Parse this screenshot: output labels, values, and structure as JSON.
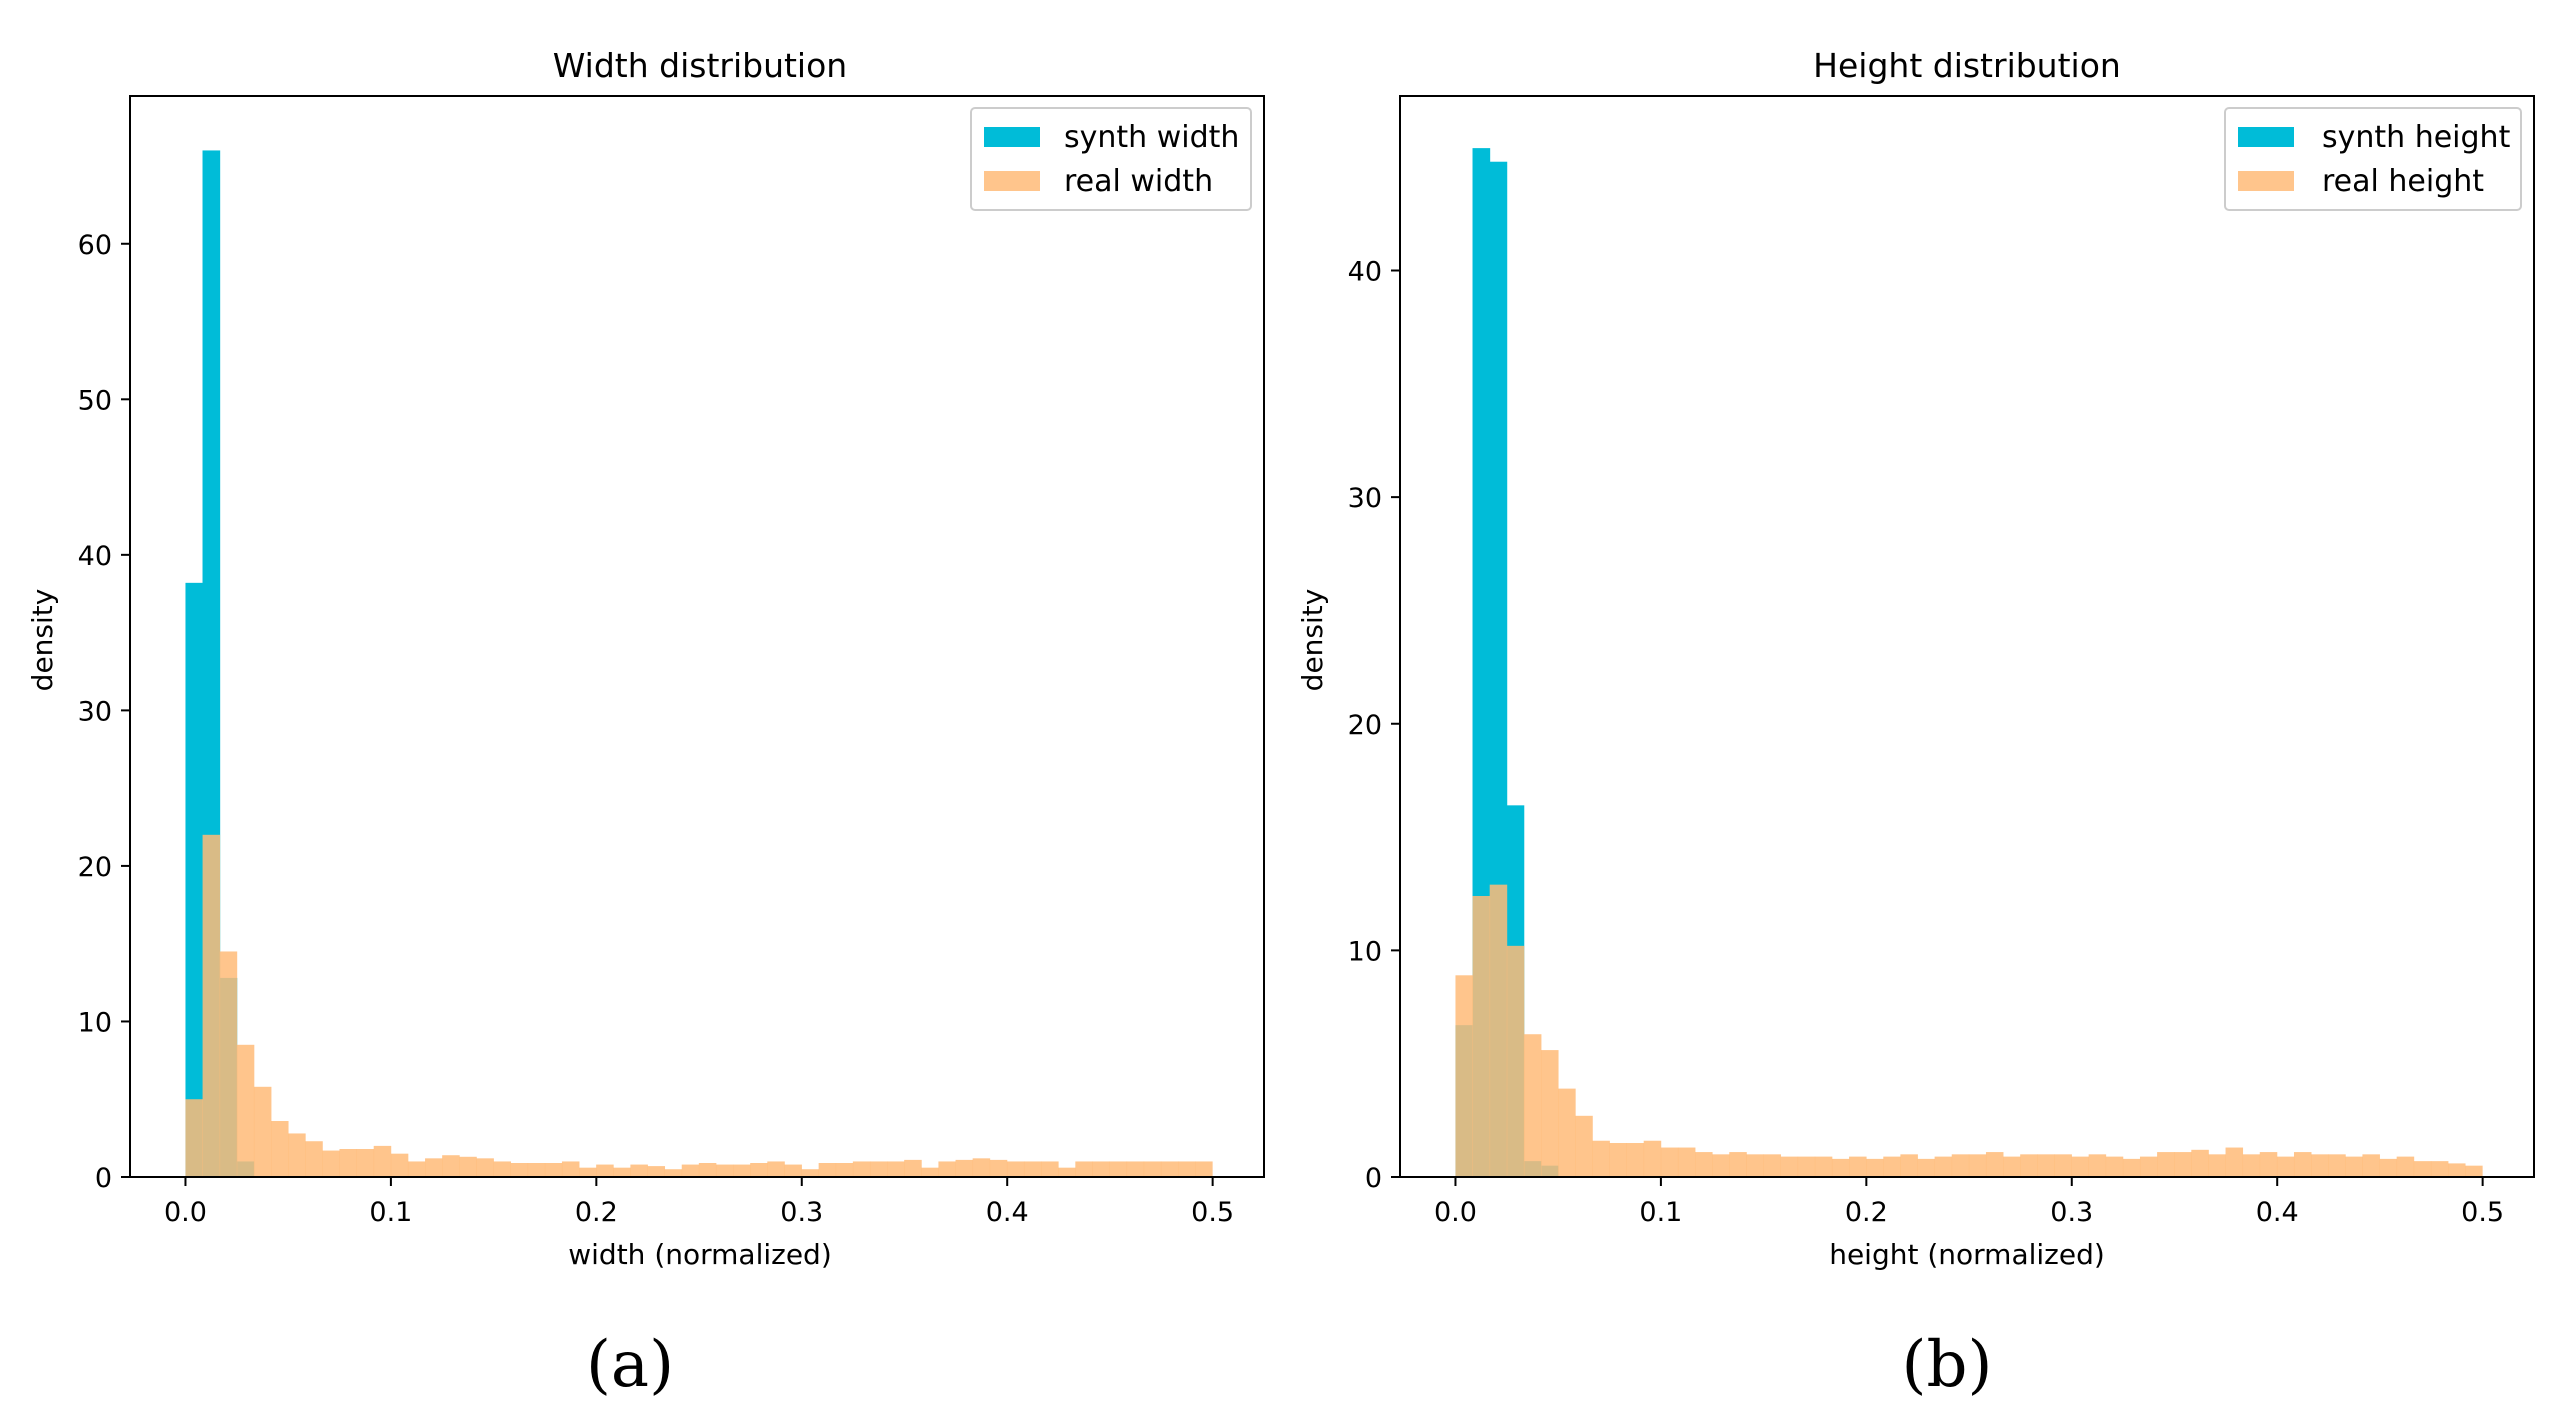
{
  "chart_data": [
    {
      "type": "histogram",
      "title": "Width distribution",
      "xlabel": "width (normalized)",
      "ylabel": "density",
      "xlim": [
        -0.027,
        0.525
      ],
      "ylim": [
        0,
        69.5
      ],
      "xticks": [
        0.0,
        0.1,
        0.2,
        0.3,
        0.4,
        0.5
      ],
      "xtick_labels": [
        "0.0",
        "0.1",
        "0.2",
        "0.3",
        "0.4",
        "0.5"
      ],
      "yticks": [
        0,
        10,
        20,
        30,
        40,
        50,
        60
      ],
      "ytick_labels": [
        "0",
        "10",
        "20",
        "30",
        "40",
        "50",
        "60"
      ],
      "caption": "(a)",
      "series": [
        {
          "name": "synth width",
          "color": "#00bcd8",
          "bins": [
            [
              0.0,
              0.0083,
              38.2
            ],
            [
              0.0083,
              0.0167,
              66.0
            ],
            [
              0.0167,
              0.025,
              12.8
            ],
            [
              0.025,
              0.0333,
              1.0
            ]
          ]
        },
        {
          "name": "real width",
          "color": "#ffbb78",
          "bin_start": 0.0,
          "bin_width": 0.00833,
          "values": [
            5.0,
            22.0,
            14.5,
            8.5,
            5.8,
            3.6,
            2.8,
            2.3,
            1.7,
            1.8,
            1.8,
            2.0,
            1.5,
            1.0,
            1.2,
            1.4,
            1.3,
            1.2,
            1.0,
            0.9,
            0.9,
            0.9,
            1.0,
            0.6,
            0.8,
            0.6,
            0.8,
            0.7,
            0.5,
            0.8,
            0.9,
            0.8,
            0.8,
            0.9,
            1.0,
            0.8,
            0.5,
            0.9,
            0.9,
            1.0,
            1.0,
            1.0,
            1.1,
            0.6,
            1.0,
            1.1,
            1.2,
            1.1,
            1.0,
            1.0,
            1.0,
            0.6,
            1.0,
            1.0,
            1.0,
            1.0,
            1.0,
            1.0,
            1.0,
            1.0
          ]
        }
      ]
    },
    {
      "type": "histogram",
      "title": "Height distribution",
      "xlabel": "height (normalized)",
      "ylabel": "density",
      "xlim": [
        -0.027,
        0.525
      ],
      "ylim": [
        0,
        47.7
      ],
      "xticks": [
        0.0,
        0.1,
        0.2,
        0.3,
        0.4,
        0.5
      ],
      "xtick_labels": [
        "0.0",
        "0.1",
        "0.2",
        "0.3",
        "0.4",
        "0.5"
      ],
      "yticks": [
        0,
        10,
        20,
        30,
        40
      ],
      "ytick_labels": [
        "0",
        "10",
        "20",
        "30",
        "40"
      ],
      "caption": "(b)",
      "series": [
        {
          "name": "synth height",
          "color": "#00bcd8",
          "bins": [
            [
              0.0,
              0.0083,
              6.7
            ],
            [
              0.0083,
              0.0167,
              45.4
            ],
            [
              0.0167,
              0.025,
              44.8
            ],
            [
              0.025,
              0.0333,
              16.4
            ],
            [
              0.0333,
              0.0417,
              0.7
            ],
            [
              0.0417,
              0.05,
              0.5
            ]
          ]
        },
        {
          "name": "real height",
          "color": "#ffbb78",
          "bin_start": 0.0,
          "bin_width": 0.00833,
          "values": [
            8.9,
            12.4,
            12.9,
            10.2,
            6.3,
            5.6,
            3.9,
            2.7,
            1.6,
            1.5,
            1.5,
            1.6,
            1.3,
            1.3,
            1.1,
            1.0,
            1.1,
            1.0,
            1.0,
            0.9,
            0.9,
            0.9,
            0.8,
            0.9,
            0.8,
            0.9,
            1.0,
            0.8,
            0.9,
            1.0,
            1.0,
            1.1,
            0.9,
            1.0,
            1.0,
            1.0,
            0.9,
            1.0,
            0.9,
            0.8,
            0.9,
            1.1,
            1.1,
            1.2,
            1.0,
            1.3,
            1.0,
            1.1,
            0.9,
            1.1,
            1.0,
            1.0,
            0.9,
            1.0,
            0.8,
            0.9,
            0.7,
            0.7,
            0.6,
            0.5
          ]
        }
      ]
    }
  ]
}
